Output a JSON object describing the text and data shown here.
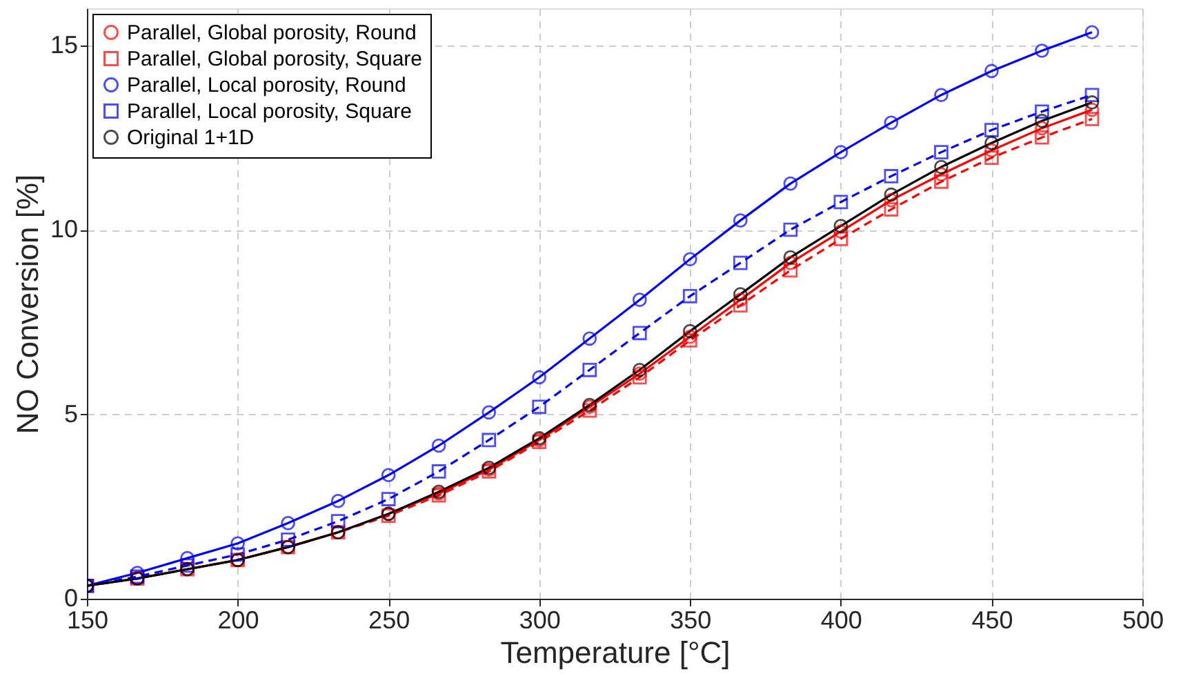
{
  "chart_data": {
    "type": "line",
    "xlabel": "Temperature [°C]",
    "ylabel": "NO Conversion [%]",
    "x": [
      150,
      166.7,
      183.3,
      200,
      216.7,
      233.3,
      250,
      266.7,
      283.3,
      300,
      316.7,
      333.3,
      350,
      366.7,
      383.3,
      400,
      416.7,
      433.3,
      450,
      466.7,
      483.3
    ],
    "xlim": [
      150,
      500
    ],
    "xticks": [
      150,
      200,
      250,
      300,
      350,
      400,
      450,
      500
    ],
    "ylim": [
      0,
      16
    ],
    "yticks": [
      0,
      5,
      10,
      15
    ],
    "grid": true,
    "legend": "top left",
    "series": [
      {
        "name": "Parallel, Global porosity, Round",
        "color": "#ff0000",
        "marker": "circle",
        "line_style": "solid",
        "values": [
          0.35,
          0.55,
          0.8,
          1.05,
          1.4,
          1.8,
          2.3,
          2.85,
          3.5,
          4.3,
          5.2,
          6.1,
          7.1,
          8.1,
          9.1,
          9.95,
          10.8,
          11.5,
          12.15,
          12.75,
          13.25
        ]
      },
      {
        "name": "Parallel, Global porosity, Square",
        "color": "#ff0000",
        "marker": "square",
        "line_style": "dashed",
        "values": [
          0.35,
          0.55,
          0.8,
          1.05,
          1.4,
          1.8,
          2.25,
          2.8,
          3.45,
          4.25,
          5.1,
          6.0,
          7.0,
          7.95,
          8.9,
          9.75,
          10.55,
          11.3,
          11.95,
          12.5,
          13.0
        ]
      },
      {
        "name": "Parallel, Local porosity, Round",
        "color": "#0000ff",
        "marker": "circle",
        "line_style": "solid",
        "values": [
          0.35,
          0.7,
          1.1,
          1.5,
          2.05,
          2.65,
          3.35,
          4.15,
          5.05,
          6.0,
          7.05,
          8.1,
          9.2,
          10.25,
          11.25,
          12.1,
          12.9,
          13.65,
          14.3,
          14.85,
          15.35
        ]
      },
      {
        "name": "Parallel, Local porosity, Square",
        "color": "#0000ff",
        "marker": "square",
        "line_style": "dashed",
        "values": [
          0.35,
          0.6,
          0.9,
          1.2,
          1.6,
          2.1,
          2.7,
          3.45,
          4.3,
          5.2,
          6.2,
          7.2,
          8.2,
          9.1,
          10.0,
          10.75,
          11.45,
          12.1,
          12.7,
          13.2,
          13.65
        ]
      },
      {
        "name": "Original 1+1D",
        "color": "#000000",
        "marker": "circle",
        "line_style": "solid",
        "values": [
          0.35,
          0.55,
          0.8,
          1.05,
          1.4,
          1.8,
          2.3,
          2.9,
          3.55,
          4.35,
          5.25,
          6.2,
          7.25,
          8.25,
          9.25,
          10.1,
          10.95,
          11.7,
          12.35,
          12.95,
          13.45
        ]
      }
    ]
  }
}
